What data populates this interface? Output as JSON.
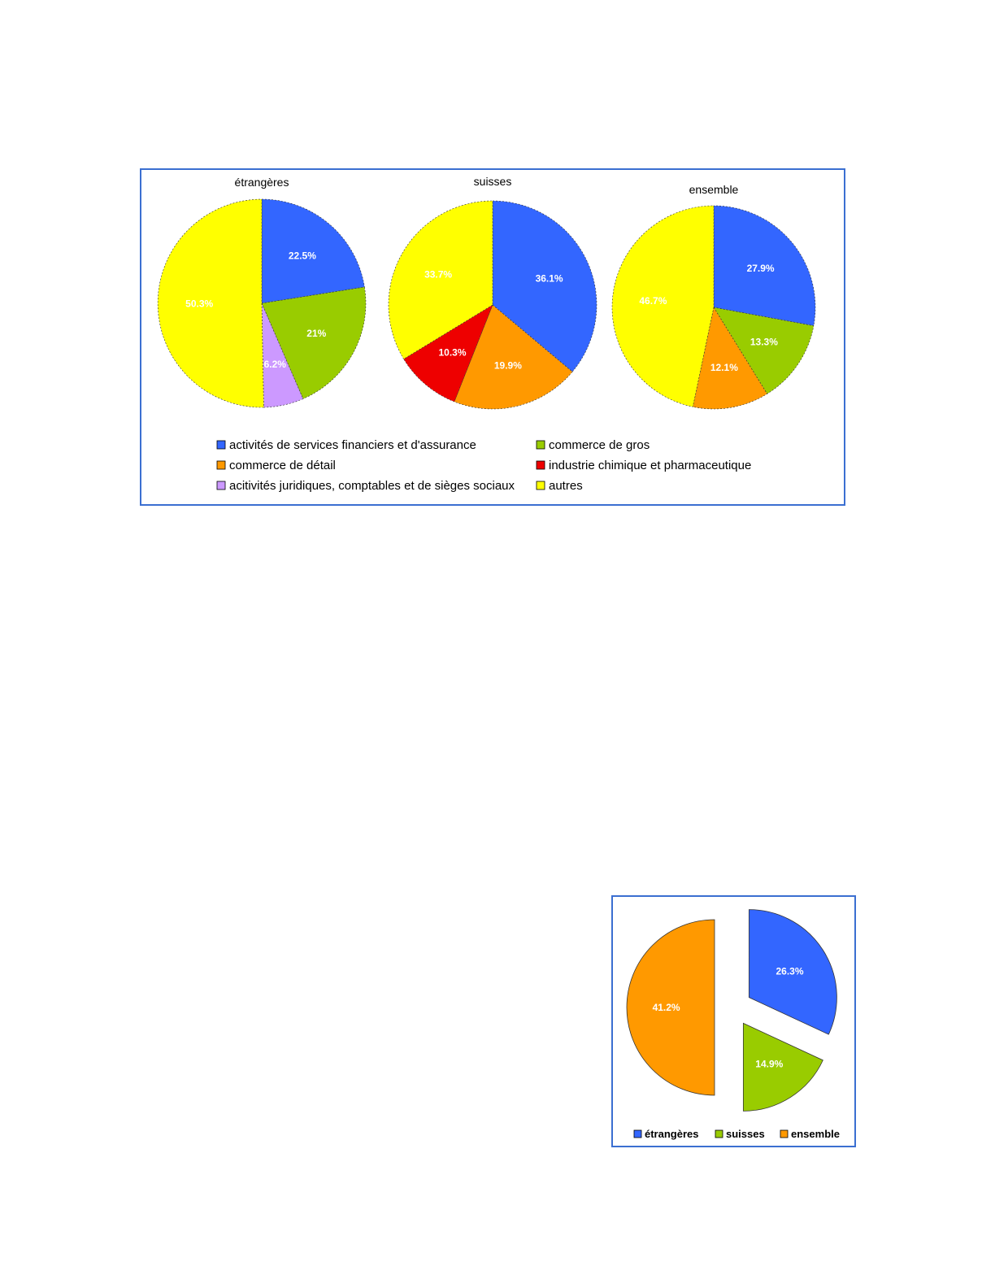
{
  "chart_data": [
    {
      "type": "pie",
      "legend": {
        "placement": "bottom",
        "entries": [
          {
            "label": "activités de services financiers et d'assurance",
            "color": "#3366ff"
          },
          {
            "label": "commerce de gros",
            "color": "#99cc00"
          },
          {
            "label": "commerce de détail",
            "color": "#ff9900"
          },
          {
            "label": "industrie chimique et pharmaceutique",
            "color": "#ee0000"
          },
          {
            "label": "acitivités juridiques, comptables et de sièges sociaux",
            "color": "#cc99ff"
          },
          {
            "label": "autres",
            "color": "#ffff00"
          }
        ]
      },
      "pies": [
        {
          "title": "étrangères",
          "slices": [
            {
              "category": "activités de services financiers et d'assurance",
              "value": 22.5,
              "label": "22.5%",
              "color": "#3366ff"
            },
            {
              "category": "commerce de gros",
              "value": 21,
              "label": "21%",
              "color": "#99cc00"
            },
            {
              "category": "acitivités juridiques, comptables et de sièges sociaux",
              "value": 6.2,
              "label": "6.2%",
              "color": "#cc99ff"
            },
            {
              "category": "autres",
              "value": 50.3,
              "label": "50.3%",
              "color": "#ffff00"
            }
          ]
        },
        {
          "title": "suisses",
          "slices": [
            {
              "category": "activités de services financiers et d'assurance",
              "value": 36.1,
              "label": "36.1%",
              "color": "#3366ff"
            },
            {
              "category": "commerce de détail",
              "value": 19.9,
              "label": "19.9%",
              "color": "#ff9900"
            },
            {
              "category": "industrie chimique et pharmaceutique",
              "value": 10.3,
              "label": "10.3%",
              "color": "#ee0000"
            },
            {
              "category": "autres",
              "value": 33.7,
              "label": "33.7%",
              "color": "#ffff00"
            }
          ]
        },
        {
          "title": "ensemble",
          "slices": [
            {
              "category": "activités de services financiers et d'assurance",
              "value": 27.9,
              "label": "27.9%",
              "color": "#3366ff"
            },
            {
              "category": "commerce de gros",
              "value": 13.3,
              "label": "13.3%",
              "color": "#99cc00"
            },
            {
              "category": "commerce de détail",
              "value": 12.1,
              "label": "12.1%",
              "color": "#ff9900"
            },
            {
              "category": "autres",
              "value": 46.7,
              "label": "46.7%",
              "color": "#ffff00"
            }
          ]
        }
      ]
    },
    {
      "type": "pie",
      "exploded": true,
      "legend": {
        "placement": "bottom",
        "entries": [
          {
            "label": "étrangères",
            "color": "#3366ff"
          },
          {
            "label": "suisses",
            "color": "#99cc00"
          },
          {
            "label": "ensemble",
            "color": "#ff9900"
          }
        ]
      },
      "slices": [
        {
          "category": "étrangères",
          "value": 26.3,
          "label": "26.3%",
          "color": "#3366ff"
        },
        {
          "category": "suisses",
          "value": 14.9,
          "label": "14.9%",
          "color": "#99cc00"
        },
        {
          "category": "ensemble",
          "value": 41.2,
          "label": "41.2%",
          "color": "#ff9900"
        }
      ]
    }
  ]
}
